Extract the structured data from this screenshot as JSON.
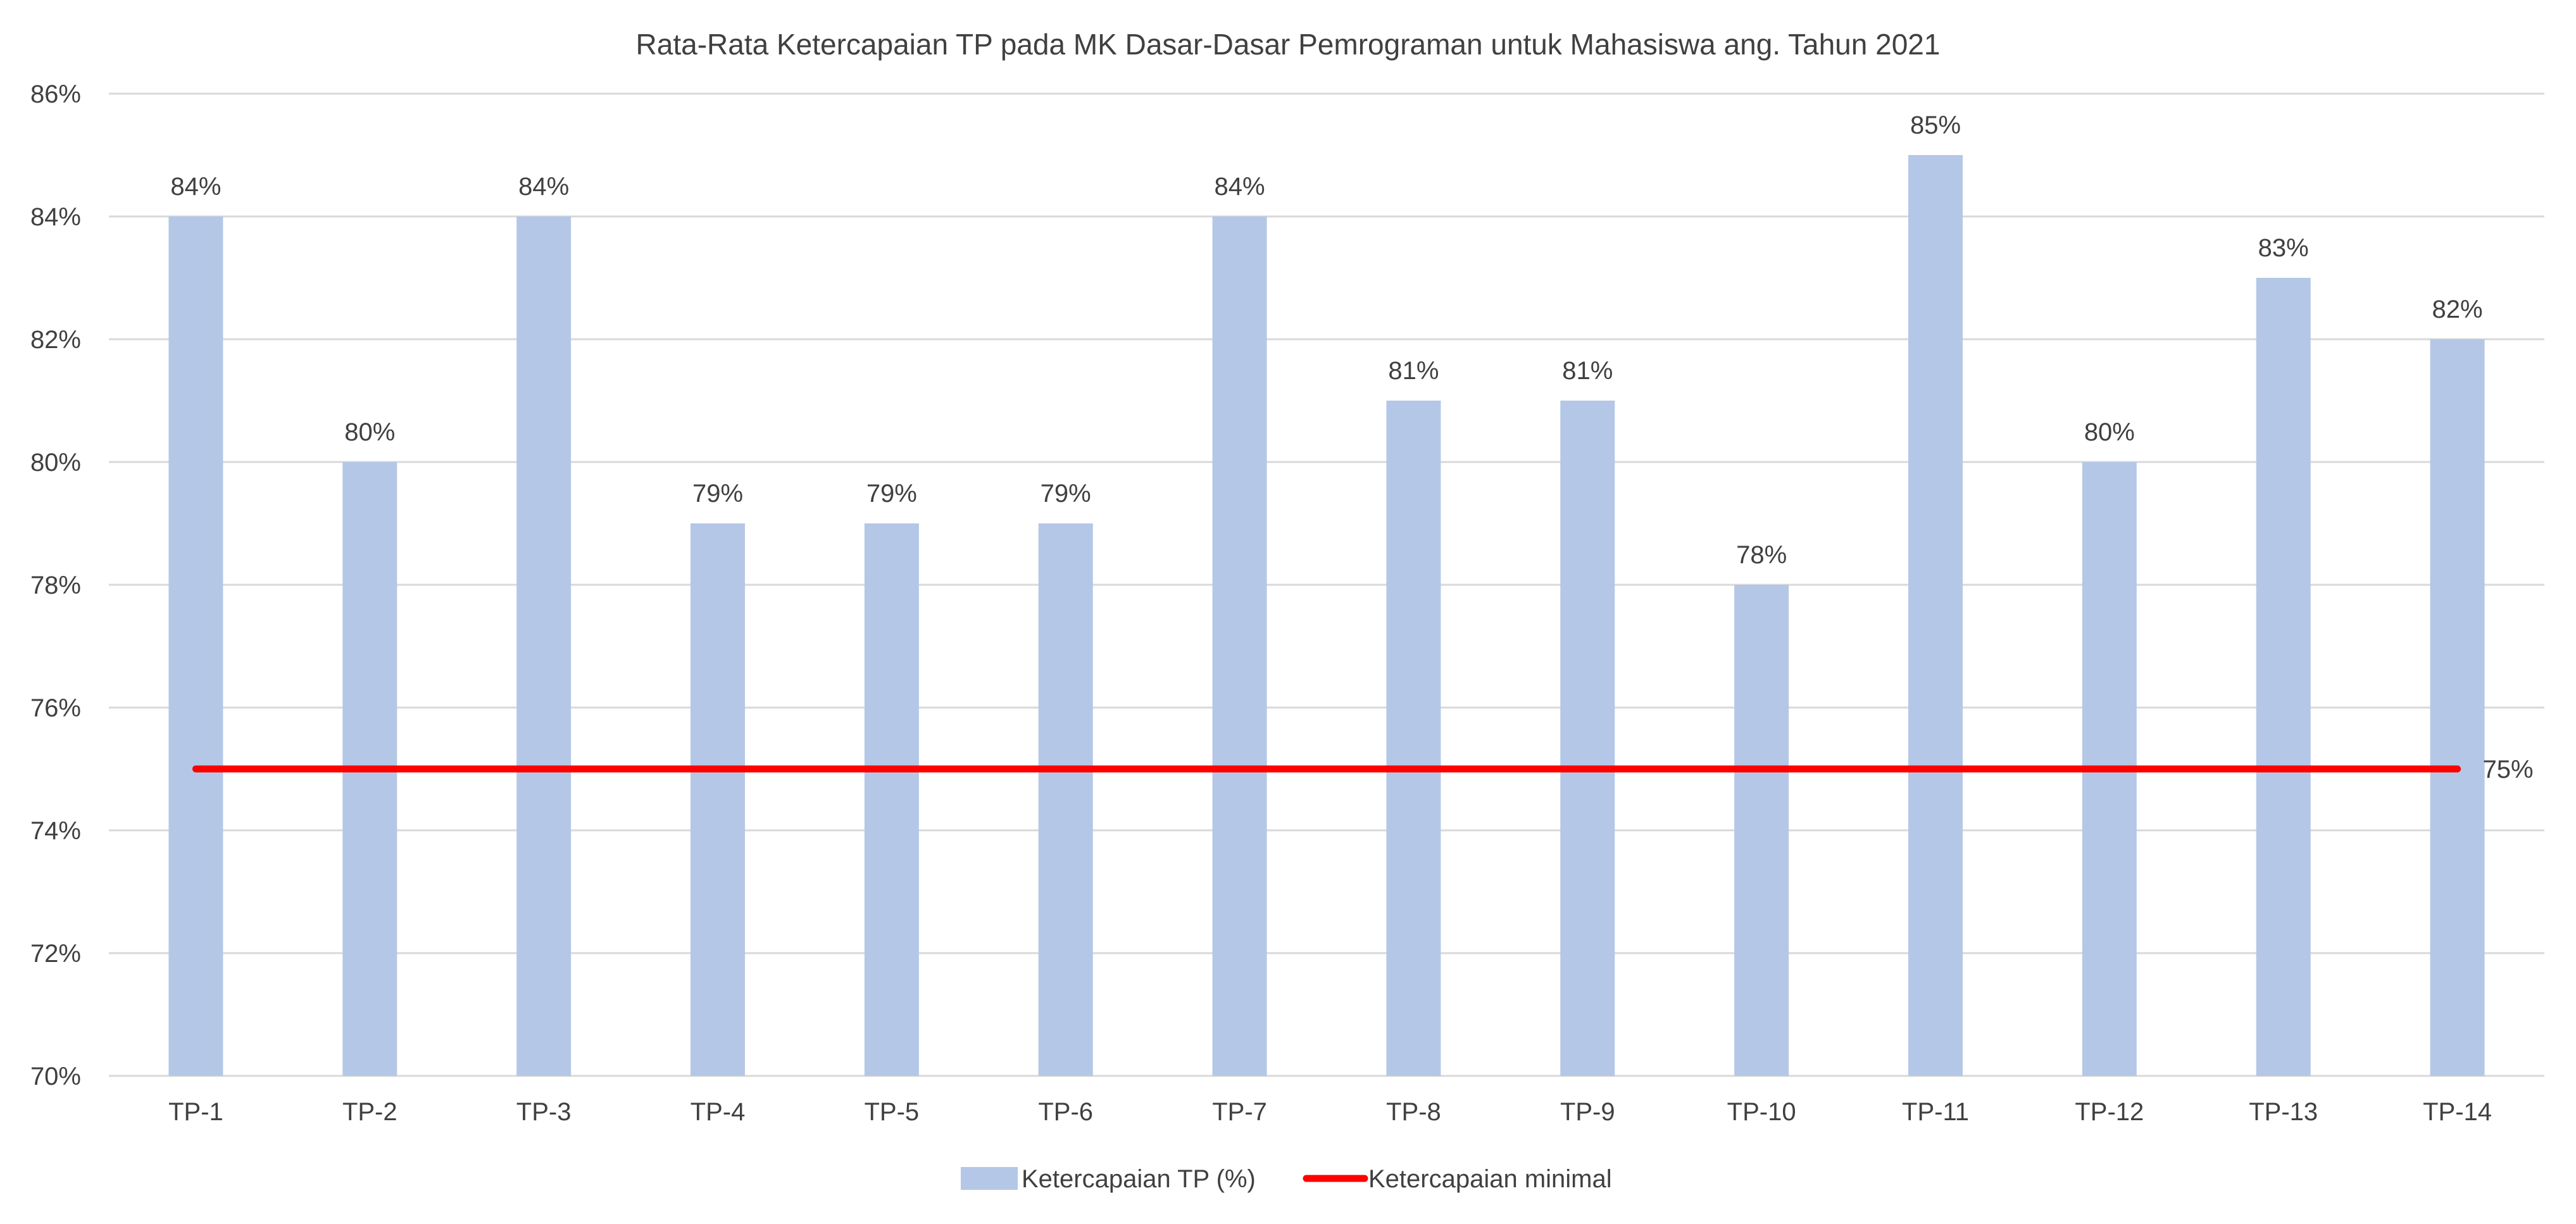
{
  "chart_data": {
    "type": "bar",
    "title": "Rata-Rata Ketercapaian TP pada MK Dasar-Dasar Pemrograman untuk Mahasiswa ang. Tahun 2021",
    "xlabel": "",
    "ylabel": "",
    "categories": [
      "TP-1",
      "TP-2",
      "TP-3",
      "TP-4",
      "TP-5",
      "TP-6",
      "TP-7",
      "TP-8",
      "TP-9",
      "TP-10",
      "TP-11",
      "TP-12",
      "TP-13",
      "TP-14"
    ],
    "series": [
      {
        "name": "Ketercapaian TP (%)",
        "type": "bar",
        "color": "#b4c7e7",
        "values": [
          84,
          80,
          84,
          79,
          79,
          79,
          84,
          81,
          81,
          78,
          85,
          80,
          83,
          82
        ],
        "labels": [
          "84%",
          "80%",
          "84%",
          "79%",
          "79%",
          "79%",
          "84%",
          "81%",
          "81%",
          "78%",
          "85%",
          "80%",
          "83%",
          "82%"
        ]
      },
      {
        "name": "Ketercapaian minimal",
        "type": "line",
        "color": "#ff0000",
        "value": 75,
        "label": "75%"
      }
    ],
    "ylim": [
      70,
      86
    ],
    "yticks": [
      70,
      72,
      74,
      76,
      78,
      80,
      82,
      84,
      86
    ],
    "ytick_labels": [
      "70%",
      "72%",
      "74%",
      "76%",
      "78%",
      "80%",
      "82%",
      "84%",
      "86%"
    ],
    "grid": true,
    "legend_position": "bottom-center"
  }
}
